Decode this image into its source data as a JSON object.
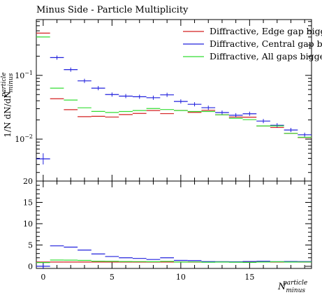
{
  "title": "Minus Side - Particle Multiplicity",
  "ylabel_main": "1/N dN/dN",
  "ylabel_main_sup": "particle",
  "ylabel_main_sub": "minus",
  "xlabel": "N",
  "xlabel_sup": "particle",
  "xlabel_sub": "minus",
  "chart_data": [
    {
      "type": "line",
      "title": "Minus Side - Particle Multiplicity",
      "subtitle": "",
      "ylabel": "1/N dN/dN particle minus",
      "xlabel": "",
      "yscale": "log",
      "ylim": [
        0.0022,
        0.75
      ],
      "xlim": [
        -0.5,
        19.5
      ],
      "y_ticks": [
        {
          "value": 0.01,
          "label": "10−2"
        },
        {
          "value": 0.1,
          "label": "10−1"
        }
      ],
      "legend_position": "top-right",
      "grid": false,
      "x": [
        0,
        1,
        2,
        3,
        4,
        5,
        6,
        7,
        8,
        9,
        10,
        11,
        12,
        13,
        14,
        15,
        16,
        17,
        18,
        19
      ],
      "series": [
        {
          "name": "Diffractive, Edge gap bigg",
          "color": "#d42020",
          "values": [
            0.46,
            0.043,
            0.029,
            0.0225,
            0.0228,
            0.0222,
            0.0243,
            0.0253,
            0.0281,
            0.0251,
            0.0282,
            0.0263,
            0.0283,
            0.0241,
            0.0222,
            0.0221,
            0.0161,
            0.0152,
            0.0123,
            0.0106
          ]
        },
        {
          "name": "Diffractive, Central gap bi",
          "color": "#2020dd",
          "values": [
            0.0049,
            0.19,
            0.123,
            0.082,
            0.063,
            0.05,
            0.0473,
            0.0462,
            0.0446,
            0.0495,
            0.039,
            0.0352,
            0.0311,
            0.0261,
            0.0237,
            0.025,
            0.0192,
            0.0165,
            0.0139,
            0.0117
          ]
        },
        {
          "name": "Diffractive, All gaps bigge",
          "color": "#33dd33",
          "values": [
            0.4,
            0.063,
            0.041,
            0.031,
            0.0272,
            0.0262,
            0.0271,
            0.0281,
            0.0302,
            0.0291,
            0.0281,
            0.0271,
            0.0271,
            0.0241,
            0.0212,
            0.0202,
            0.0161,
            0.0161,
            0.0123,
            0.0107
          ]
        }
      ]
    },
    {
      "type": "line",
      "title": "",
      "xlabel": "N particle minus",
      "ylabel": "",
      "ylim": [
        -0.5,
        20
      ],
      "xlim": [
        -0.5,
        19.5
      ],
      "x_ticks": [
        0,
        5,
        10,
        15
      ],
      "y_ticks": [
        0,
        5,
        10,
        15,
        20
      ],
      "x": [
        0,
        1,
        2,
        3,
        4,
        5,
        6,
        7,
        8,
        9,
        10,
        11,
        12,
        13,
        14,
        15,
        16,
        17,
        18,
        19
      ],
      "series": [
        {
          "color": "#d42020",
          "values": [
            1,
            1,
            1,
            1,
            1,
            1,
            1,
            1,
            1,
            1,
            1,
            1,
            1,
            1,
            1,
            1,
            1,
            1,
            1,
            1
          ]
        },
        {
          "color": "#2020dd",
          "values": [
            0.01,
            4.8,
            4.5,
            3.8,
            2.9,
            2.3,
            2.0,
            1.85,
            1.6,
            2.0,
            1.38,
            1.34,
            1.1,
            1.08,
            1.07,
            1.13,
            1.19,
            1.09,
            1.13,
            1.1
          ]
        },
        {
          "color": "#33dd33",
          "values": [
            0.87,
            1.47,
            1.45,
            1.38,
            1.2,
            1.18,
            1.12,
            1.11,
            1.08,
            1.16,
            1.0,
            1.03,
            0.96,
            1.0,
            0.96,
            0.91,
            1.0,
            1.06,
            1.0,
            1.01
          ]
        }
      ]
    }
  ]
}
